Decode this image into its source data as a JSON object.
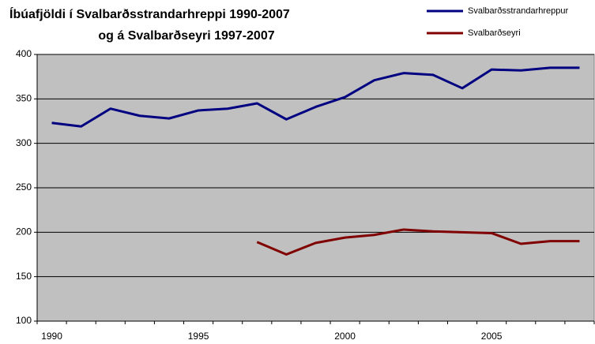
{
  "chart_data": {
    "type": "line",
    "title": [
      "Íbúafjöldi í Svalbarðsstrandarhreppi 1990-2007",
      "og á Svalbarðseyri 1997-2007"
    ],
    "categories": [
      "1990",
      null,
      null,
      null,
      null,
      "1995",
      null,
      null,
      null,
      null,
      "2000",
      null,
      null,
      null,
      null,
      "2005",
      null,
      null,
      null
    ],
    "series": [
      {
        "name": "Svalbarðsstrandarhreppur",
        "color": "#000080",
        "values": [
          323,
          319,
          339,
          331,
          328,
          337,
          339,
          345,
          327,
          341,
          352,
          371,
          379,
          377,
          362,
          383,
          382,
          385,
          385
        ]
      },
      {
        "name": "Svalbarðseyri",
        "color": "#800000",
        "values": [
          null,
          null,
          null,
          null,
          null,
          null,
          null,
          189,
          175,
          188,
          194,
          197,
          203,
          201,
          200,
          199,
          187,
          190,
          190
        ]
      }
    ],
    "ylim": [
      100,
      400
    ],
    "yticks": [
      100,
      150,
      200,
      250,
      300,
      350,
      400
    ],
    "grid": true,
    "legend": "top-right"
  }
}
